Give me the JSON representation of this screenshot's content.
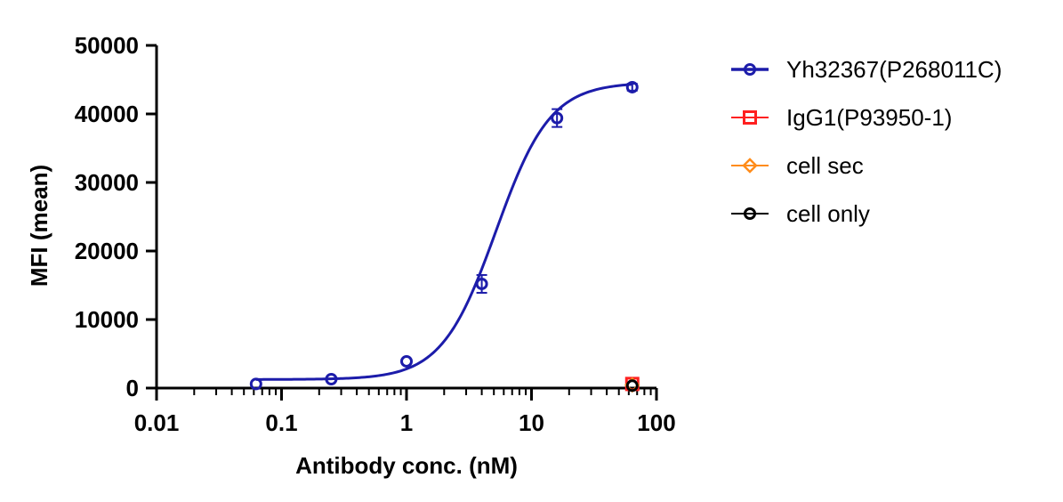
{
  "chart_data": {
    "type": "scatter",
    "title": "",
    "xlabel": "Antibody conc. (nM)",
    "ylabel": "MFI (mean)",
    "xscale": "log",
    "xlim": [
      0.01,
      100
    ],
    "ylim": [
      0,
      50000
    ],
    "x_ticks": [
      0.01,
      0.1,
      1,
      10,
      100
    ],
    "x_tick_labels": [
      "0.01",
      "0.1",
      "1",
      "10",
      "100"
    ],
    "y_ticks": [
      0,
      10000,
      20000,
      30000,
      40000,
      50000
    ],
    "y_tick_labels": [
      "0",
      "10000",
      "20000",
      "30000",
      "40000",
      "50000"
    ],
    "grid": false,
    "legend_position": "right",
    "series": [
      {
        "name": "Yh32367(P268011C)",
        "color": "#1c1caa",
        "marker": "circle",
        "fit": "4PL",
        "fit_params": {
          "bottom": 1250,
          "top": 44600,
          "ec50": 5.2,
          "hill": 2.0
        },
        "points": [
          {
            "x": 0.0625,
            "y": 600,
            "err": 0
          },
          {
            "x": 0.25,
            "y": 1300,
            "err": 0
          },
          {
            "x": 1,
            "y": 3900,
            "err": 0
          },
          {
            "x": 4,
            "y": 15200,
            "err": 1300
          },
          {
            "x": 16,
            "y": 39400,
            "err": 1300
          },
          {
            "x": 64,
            "y": 43900,
            "err": 500
          }
        ]
      },
      {
        "name": "IgG1(P93950-1)",
        "color": "#ff2020",
        "marker": "square",
        "points": [
          {
            "x": 64,
            "y": 600,
            "err": 0
          }
        ]
      },
      {
        "name": "cell sec",
        "color": "#ff8c1a",
        "marker": "diamond",
        "points": [
          {
            "x": 64,
            "y": 450,
            "err": 0
          }
        ]
      },
      {
        "name": "cell only",
        "color": "#000000",
        "marker": "circle",
        "points": [
          {
            "x": 64,
            "y": 350,
            "err": 0
          }
        ]
      }
    ]
  }
}
